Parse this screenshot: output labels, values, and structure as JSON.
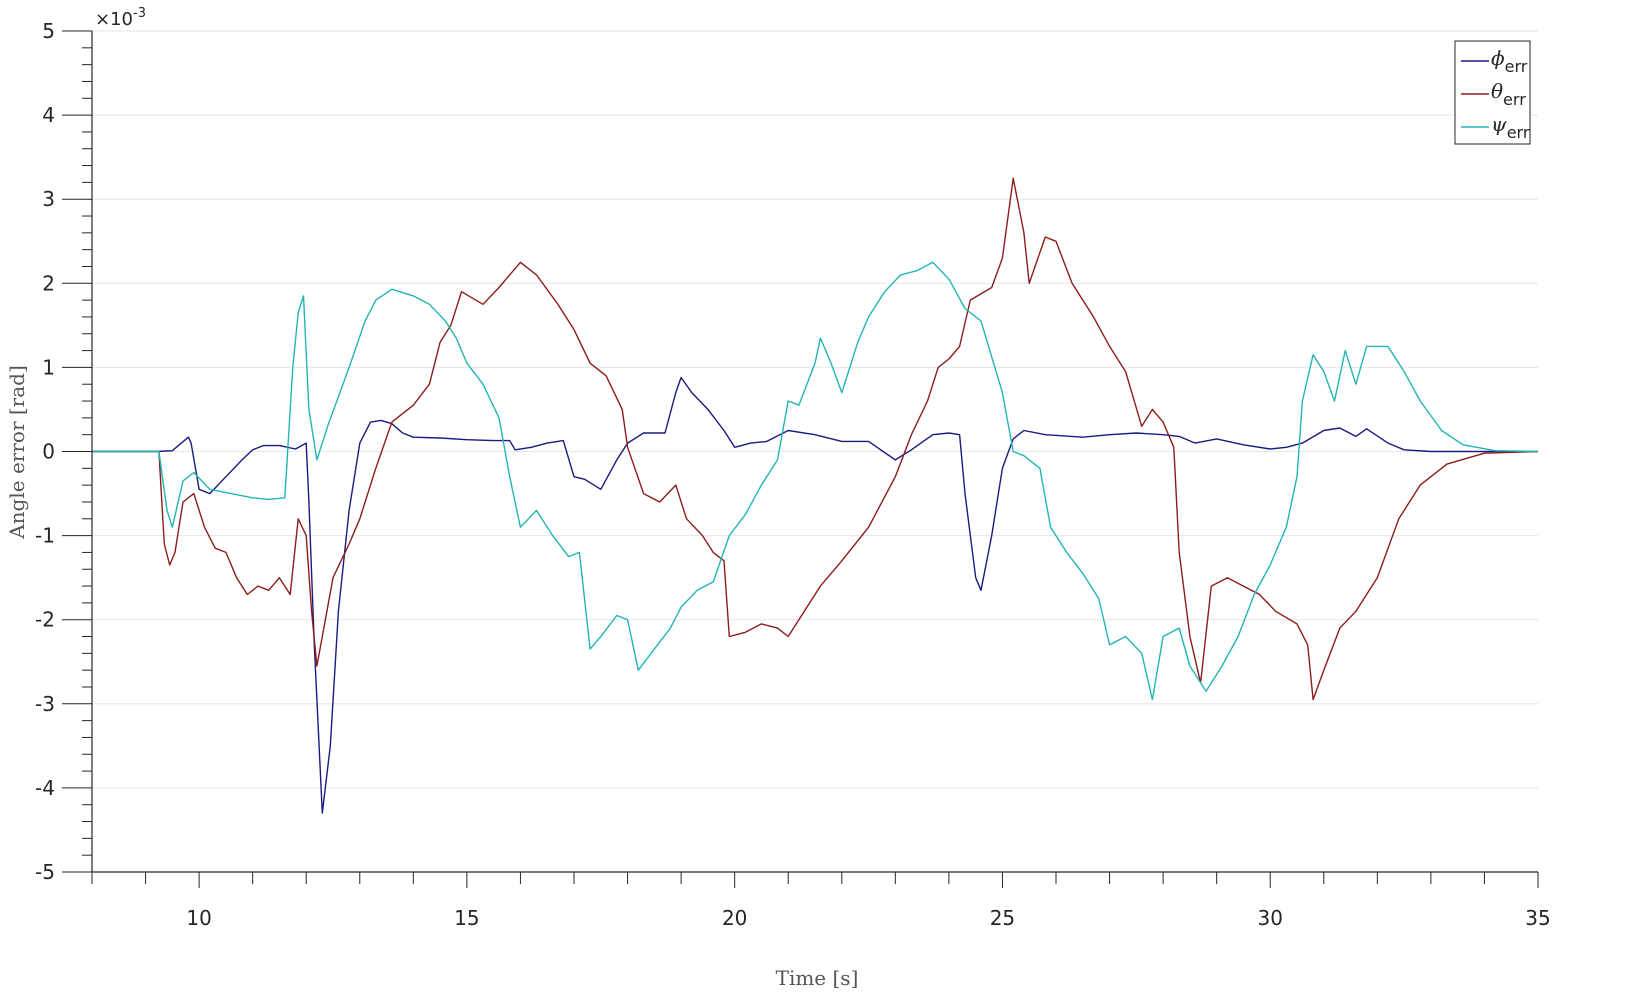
{
  "chart_data": {
    "type": "line",
    "title": "",
    "xlabel": "Time [s]",
    "ylabel": "Angle error [rad]",
    "y_exponent_label": "×10",
    "y_exponent_power": "-3",
    "xlim": [
      8,
      35
    ],
    "ylim": [
      -5,
      5
    ],
    "x_ticks": [
      10,
      15,
      20,
      25,
      30,
      35
    ],
    "y_ticks": [
      -5,
      -4,
      -3,
      -2,
      -1,
      0,
      1,
      2,
      3,
      4,
      5
    ],
    "grid": "horizontal",
    "legend_position": "top-right",
    "series": [
      {
        "name": "ϕ",
        "name_subscript": "err",
        "color": "#1a1a80",
        "points": [
          [
            8,
            0
          ],
          [
            9.2,
            0
          ],
          [
            9.5,
            0.01
          ],
          [
            9.8,
            0.17
          ],
          [
            9.85,
            0.1
          ],
          [
            10.0,
            -0.45
          ],
          [
            10.2,
            -0.5
          ],
          [
            10.5,
            -0.3
          ],
          [
            10.8,
            -0.1
          ],
          [
            11.0,
            0.02
          ],
          [
            11.2,
            0.07
          ],
          [
            11.5,
            0.07
          ],
          [
            11.8,
            0.03
          ],
          [
            12.0,
            0.1
          ],
          [
            12.05,
            -0.6
          ],
          [
            12.15,
            -2.3
          ],
          [
            12.3,
            -4.3
          ],
          [
            12.45,
            -3.5
          ],
          [
            12.6,
            -1.9
          ],
          [
            12.8,
            -0.7
          ],
          [
            13.0,
            0.1
          ],
          [
            13.2,
            0.35
          ],
          [
            13.4,
            0.37
          ],
          [
            13.6,
            0.33
          ],
          [
            13.8,
            0.22
          ],
          [
            14.0,
            0.17
          ],
          [
            14.5,
            0.16
          ],
          [
            15.0,
            0.14
          ],
          [
            15.5,
            0.13
          ],
          [
            15.8,
            0.13
          ],
          [
            15.9,
            0.02
          ],
          [
            16.2,
            0.05
          ],
          [
            16.5,
            0.1
          ],
          [
            16.8,
            0.13
          ],
          [
            17.0,
            -0.3
          ],
          [
            17.2,
            -0.33
          ],
          [
            17.5,
            -0.45
          ],
          [
            17.8,
            -0.1
          ],
          [
            18.0,
            0.1
          ],
          [
            18.3,
            0.22
          ],
          [
            18.7,
            0.22
          ],
          [
            18.9,
            0.7
          ],
          [
            19.0,
            0.88
          ],
          [
            19.2,
            0.7
          ],
          [
            19.5,
            0.5
          ],
          [
            19.8,
            0.25
          ],
          [
            20.0,
            0.05
          ],
          [
            20.3,
            0.1
          ],
          [
            20.6,
            0.12
          ],
          [
            21.0,
            0.25
          ],
          [
            21.5,
            0.2
          ],
          [
            22.0,
            0.12
          ],
          [
            22.5,
            0.12
          ],
          [
            23.0,
            -0.1
          ],
          [
            23.3,
            0.02
          ],
          [
            23.7,
            0.2
          ],
          [
            24.0,
            0.22
          ],
          [
            24.2,
            0.2
          ],
          [
            24.3,
            -0.5
          ],
          [
            24.5,
            -1.5
          ],
          [
            24.6,
            -1.65
          ],
          [
            24.8,
            -1.0
          ],
          [
            25.0,
            -0.2
          ],
          [
            25.2,
            0.15
          ],
          [
            25.4,
            0.25
          ],
          [
            25.8,
            0.2
          ],
          [
            26.5,
            0.17
          ],
          [
            27.0,
            0.2
          ],
          [
            27.5,
            0.22
          ],
          [
            28.0,
            0.2
          ],
          [
            28.3,
            0.18
          ],
          [
            28.6,
            0.1
          ],
          [
            29.0,
            0.15
          ],
          [
            29.5,
            0.08
          ],
          [
            30.0,
            0.03
          ],
          [
            30.3,
            0.05
          ],
          [
            30.6,
            0.1
          ],
          [
            31.0,
            0.25
          ],
          [
            31.3,
            0.28
          ],
          [
            31.6,
            0.18
          ],
          [
            31.8,
            0.27
          ],
          [
            32.2,
            0.1
          ],
          [
            32.5,
            0.02
          ],
          [
            33.0,
            0.0
          ],
          [
            35,
            0
          ]
        ]
      },
      {
        "name": "θ",
        "name_subscript": "err",
        "color": "#8c1c1c",
        "points": [
          [
            8,
            0
          ],
          [
            9.25,
            0
          ],
          [
            9.35,
            -1.1
          ],
          [
            9.45,
            -1.35
          ],
          [
            9.55,
            -1.2
          ],
          [
            9.7,
            -0.6
          ],
          [
            9.9,
            -0.5
          ],
          [
            10.1,
            -0.9
          ],
          [
            10.3,
            -1.15
          ],
          [
            10.5,
            -1.2
          ],
          [
            10.7,
            -1.5
          ],
          [
            10.9,
            -1.7
          ],
          [
            11.1,
            -1.6
          ],
          [
            11.3,
            -1.65
          ],
          [
            11.5,
            -1.5
          ],
          [
            11.7,
            -1.7
          ],
          [
            11.85,
            -0.8
          ],
          [
            12.0,
            -1.0
          ],
          [
            12.1,
            -1.9
          ],
          [
            12.2,
            -2.55
          ],
          [
            12.3,
            -2.2
          ],
          [
            12.5,
            -1.5
          ],
          [
            12.8,
            -1.1
          ],
          [
            13.0,
            -0.8
          ],
          [
            13.3,
            -0.2
          ],
          [
            13.6,
            0.35
          ],
          [
            14.0,
            0.55
          ],
          [
            14.3,
            0.8
          ],
          [
            14.5,
            1.3
          ],
          [
            14.7,
            1.5
          ],
          [
            14.9,
            1.9
          ],
          [
            15.3,
            1.75
          ],
          [
            15.6,
            1.95
          ],
          [
            16.0,
            2.25
          ],
          [
            16.3,
            2.1
          ],
          [
            16.7,
            1.75
          ],
          [
            17.0,
            1.45
          ],
          [
            17.3,
            1.05
          ],
          [
            17.6,
            0.9
          ],
          [
            17.9,
            0.5
          ],
          [
            18.0,
            0.05
          ],
          [
            18.3,
            -0.5
          ],
          [
            18.6,
            -0.6
          ],
          [
            18.9,
            -0.4
          ],
          [
            19.1,
            -0.8
          ],
          [
            19.4,
            -1.0
          ],
          [
            19.6,
            -1.2
          ],
          [
            19.8,
            -1.3
          ],
          [
            19.9,
            -2.2
          ],
          [
            20.2,
            -2.15
          ],
          [
            20.5,
            -2.05
          ],
          [
            20.8,
            -2.1
          ],
          [
            21.0,
            -2.2
          ],
          [
            21.3,
            -1.9
          ],
          [
            21.6,
            -1.6
          ],
          [
            22.0,
            -1.3
          ],
          [
            22.5,
            -0.9
          ],
          [
            23.0,
            -0.3
          ],
          [
            23.3,
            0.2
          ],
          [
            23.6,
            0.6
          ],
          [
            23.8,
            1.0
          ],
          [
            24.0,
            1.1
          ],
          [
            24.2,
            1.25
          ],
          [
            24.4,
            1.8
          ],
          [
            24.8,
            1.95
          ],
          [
            25.0,
            2.3
          ],
          [
            25.2,
            3.25
          ],
          [
            25.4,
            2.6
          ],
          [
            25.5,
            2.0
          ],
          [
            25.8,
            2.55
          ],
          [
            26.0,
            2.5
          ],
          [
            26.3,
            2.0
          ],
          [
            26.7,
            1.6
          ],
          [
            27.0,
            1.25
          ],
          [
            27.3,
            0.95
          ],
          [
            27.6,
            0.3
          ],
          [
            27.8,
            0.5
          ],
          [
            28.0,
            0.35
          ],
          [
            28.2,
            0.05
          ],
          [
            28.3,
            -1.2
          ],
          [
            28.5,
            -2.2
          ],
          [
            28.7,
            -2.75
          ],
          [
            28.9,
            -1.6
          ],
          [
            29.2,
            -1.5
          ],
          [
            29.5,
            -1.6
          ],
          [
            29.8,
            -1.7
          ],
          [
            30.1,
            -1.9
          ],
          [
            30.5,
            -2.05
          ],
          [
            30.7,
            -2.3
          ],
          [
            30.8,
            -2.95
          ],
          [
            31.0,
            -2.6
          ],
          [
            31.3,
            -2.1
          ],
          [
            31.6,
            -1.9
          ],
          [
            32.0,
            -1.5
          ],
          [
            32.4,
            -0.8
          ],
          [
            32.8,
            -0.4
          ],
          [
            33.3,
            -0.15
          ],
          [
            34.0,
            -0.02
          ],
          [
            35,
            0
          ]
        ]
      },
      {
        "name": "ψ",
        "name_subscript": "err",
        "color": "#22b5b5",
        "points": [
          [
            8,
            0
          ],
          [
            9.25,
            0
          ],
          [
            9.4,
            -0.7
          ],
          [
            9.5,
            -0.9
          ],
          [
            9.7,
            -0.35
          ],
          [
            9.9,
            -0.25
          ],
          [
            10.2,
            -0.45
          ],
          [
            10.6,
            -0.5
          ],
          [
            11.0,
            -0.55
          ],
          [
            11.3,
            -0.57
          ],
          [
            11.6,
            -0.55
          ],
          [
            11.75,
            1.0
          ],
          [
            11.85,
            1.65
          ],
          [
            11.95,
            1.85
          ],
          [
            12.05,
            0.5
          ],
          [
            12.2,
            -0.1
          ],
          [
            12.4,
            0.3
          ],
          [
            12.6,
            0.65
          ],
          [
            12.8,
            1.0
          ],
          [
            13.1,
            1.55
          ],
          [
            13.3,
            1.8
          ],
          [
            13.6,
            1.93
          ],
          [
            14.0,
            1.85
          ],
          [
            14.3,
            1.75
          ],
          [
            14.6,
            1.55
          ],
          [
            14.8,
            1.35
          ],
          [
            15.0,
            1.05
          ],
          [
            15.3,
            0.8
          ],
          [
            15.6,
            0.4
          ],
          [
            15.8,
            -0.3
          ],
          [
            16.0,
            -0.9
          ],
          [
            16.3,
            -0.7
          ],
          [
            16.6,
            -1.0
          ],
          [
            16.9,
            -1.25
          ],
          [
            17.1,
            -1.2
          ],
          [
            17.3,
            -2.35
          ],
          [
            17.5,
            -2.2
          ],
          [
            17.8,
            -1.95
          ],
          [
            18.0,
            -2.0
          ],
          [
            18.2,
            -2.6
          ],
          [
            18.5,
            -2.35
          ],
          [
            18.8,
            -2.1
          ],
          [
            19.0,
            -1.85
          ],
          [
            19.3,
            -1.65
          ],
          [
            19.6,
            -1.55
          ],
          [
            19.9,
            -1.0
          ],
          [
            20.2,
            -0.75
          ],
          [
            20.5,
            -0.4
          ],
          [
            20.8,
            -0.1
          ],
          [
            21.0,
            0.6
          ],
          [
            21.2,
            0.55
          ],
          [
            21.5,
            1.05
          ],
          [
            21.6,
            1.35
          ],
          [
            21.8,
            1.05
          ],
          [
            22.0,
            0.7
          ],
          [
            22.3,
            1.3
          ],
          [
            22.5,
            1.6
          ],
          [
            22.8,
            1.9
          ],
          [
            23.1,
            2.1
          ],
          [
            23.4,
            2.15
          ],
          [
            23.7,
            2.25
          ],
          [
            24.0,
            2.05
          ],
          [
            24.3,
            1.7
          ],
          [
            24.6,
            1.55
          ],
          [
            25.0,
            0.7
          ],
          [
            25.2,
            0.0
          ],
          [
            25.4,
            -0.05
          ],
          [
            25.7,
            -0.2
          ],
          [
            25.9,
            -0.9
          ],
          [
            26.2,
            -1.2
          ],
          [
            26.5,
            -1.45
          ],
          [
            26.8,
            -1.75
          ],
          [
            27.0,
            -2.3
          ],
          [
            27.3,
            -2.2
          ],
          [
            27.6,
            -2.4
          ],
          [
            27.8,
            -2.95
          ],
          [
            28.0,
            -2.2
          ],
          [
            28.3,
            -2.1
          ],
          [
            28.5,
            -2.55
          ],
          [
            28.8,
            -2.85
          ],
          [
            29.1,
            -2.55
          ],
          [
            29.4,
            -2.2
          ],
          [
            29.7,
            -1.7
          ],
          [
            30.0,
            -1.35
          ],
          [
            30.3,
            -0.9
          ],
          [
            30.5,
            -0.3
          ],
          [
            30.6,
            0.6
          ],
          [
            30.8,
            1.15
          ],
          [
            31.0,
            0.95
          ],
          [
            31.2,
            0.6
          ],
          [
            31.4,
            1.2
          ],
          [
            31.6,
            0.8
          ],
          [
            31.8,
            1.25
          ],
          [
            32.2,
            1.25
          ],
          [
            32.5,
            0.95
          ],
          [
            32.8,
            0.6
          ],
          [
            33.2,
            0.25
          ],
          [
            33.6,
            0.08
          ],
          [
            34.2,
            0.01
          ],
          [
            35,
            0
          ]
        ]
      }
    ]
  }
}
